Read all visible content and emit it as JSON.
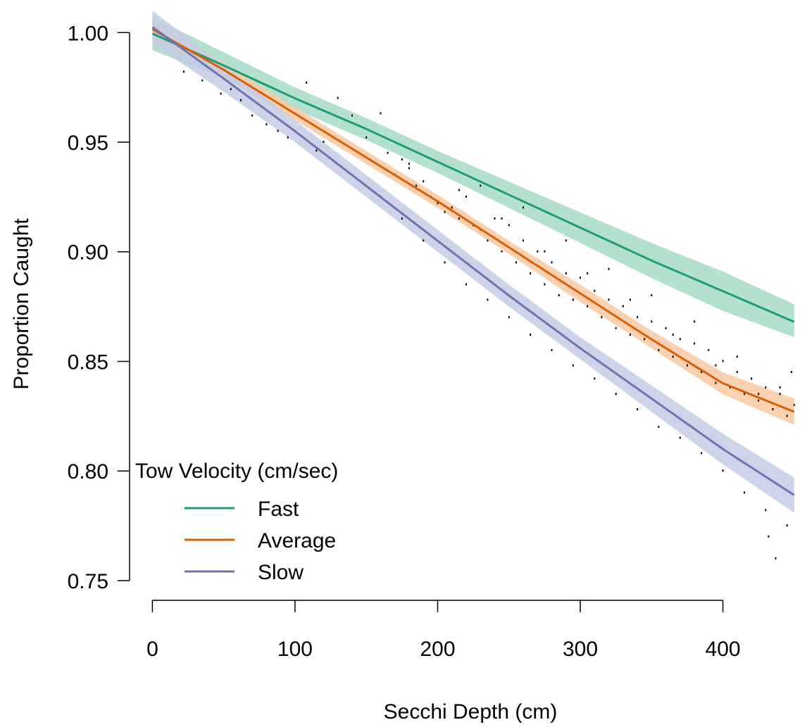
{
  "chart_data": {
    "type": "line",
    "title": "",
    "xlabel": "Secchi Depth (cm)",
    "ylabel": "Proportion Caught",
    "xlim": [
      -16,
      456
    ],
    "ylim": [
      0.741,
      1.011
    ],
    "x_ticks": [
      0,
      100,
      200,
      300,
      400
    ],
    "x_tick_labels": [
      "0",
      "100",
      "200",
      "300",
      "400"
    ],
    "y_ticks": [
      0.75,
      0.8,
      0.85,
      0.9,
      0.95,
      1.0
    ],
    "y_tick_labels": [
      "0.75",
      "0.80",
      "0.85",
      "0.90",
      "0.95",
      "1.00"
    ],
    "grid": false,
    "legend": {
      "title": "Tow Velocity (cm/sec)",
      "placement": "bottom-left"
    },
    "series": [
      {
        "name": "Fast",
        "color": "#1b9e77",
        "band_color": "#a6dcc4",
        "x": [
          0,
          50,
          100,
          150,
          200,
          250,
          300,
          350,
          400,
          450
        ],
        "y": [
          0.9995,
          0.985,
          0.97,
          0.956,
          0.941,
          0.926,
          0.911,
          0.896,
          0.882,
          0.868
        ],
        "lower": [
          0.992,
          0.979,
          0.965,
          0.951,
          0.936,
          0.92,
          0.904,
          0.888,
          0.873,
          0.861
        ],
        "upper": [
          1.007,
          0.991,
          0.975,
          0.961,
          0.946,
          0.932,
          0.918,
          0.904,
          0.891,
          0.876
        ]
      },
      {
        "name": "Average",
        "color": "#d95f02",
        "band_color": "#f8c9a2",
        "x": [
          0,
          50,
          100,
          150,
          200,
          250,
          300,
          350,
          400,
          450
        ],
        "y": [
          1.0015,
          0.983,
          0.963,
          0.943,
          0.923,
          0.902,
          0.881,
          0.86,
          0.84,
          0.827
        ],
        "lower": [
          0.998,
          0.98,
          0.96,
          0.94,
          0.92,
          0.899,
          0.877,
          0.856,
          0.835,
          0.821
        ],
        "upper": [
          1.005,
          0.986,
          0.966,
          0.946,
          0.926,
          0.905,
          0.885,
          0.864,
          0.845,
          0.833
        ]
      },
      {
        "name": "Slow",
        "color": "#7570b3",
        "band_color": "#c2cce5",
        "x": [
          0,
          50,
          100,
          150,
          200,
          250,
          300,
          350,
          400,
          450
        ],
        "y": [
          1.0025,
          0.979,
          0.955,
          0.93,
          0.905,
          0.88,
          0.856,
          0.833,
          0.81,
          0.789
        ],
        "lower": [
          0.995,
          0.973,
          0.95,
          0.925,
          0.9,
          0.875,
          0.851,
          0.827,
          0.803,
          0.781
        ],
        "upper": [
          1.01,
          0.985,
          0.96,
          0.935,
          0.91,
          0.885,
          0.861,
          0.839,
          0.817,
          0.797
        ]
      }
    ],
    "scatter_points": {
      "color": "#000000",
      "x": [
        22,
        35,
        48,
        55,
        62,
        70,
        80,
        88,
        95,
        100,
        108,
        115,
        120,
        130,
        140,
        150,
        160,
        165,
        170,
        175,
        180,
        185,
        190,
        195,
        200,
        205,
        210,
        215,
        220,
        225,
        230,
        235,
        240,
        245,
        250,
        255,
        260,
        265,
        270,
        275,
        280,
        285,
        290,
        295,
        300,
        305,
        310,
        315,
        320,
        325,
        330,
        335,
        340,
        345,
        350,
        355,
        360,
        365,
        370,
        375,
        380,
        385,
        390,
        395,
        400,
        405,
        410,
        415,
        420,
        425,
        430,
        435,
        440,
        445,
        450,
        160,
        175,
        190,
        205,
        220,
        235,
        250,
        265,
        280,
        295,
        310,
        325,
        340,
        355,
        370,
        385,
        400,
        415,
        430,
        445,
        230,
        260,
        290,
        320,
        350,
        380,
        410,
        440,
        180,
        215,
        245,
        275,
        305,
        335,
        365,
        395,
        425,
        432,
        437,
        448
      ],
      "y": [
        0.982,
        0.978,
        0.972,
        0.974,
        0.969,
        0.962,
        0.958,
        0.955,
        0.952,
        0.955,
        0.977,
        0.946,
        0.95,
        0.97,
        0.962,
        0.952,
        0.963,
        0.945,
        0.935,
        0.942,
        0.938,
        0.93,
        0.932,
        0.925,
        0.922,
        0.918,
        0.92,
        0.915,
        0.925,
        0.912,
        0.91,
        0.905,
        0.915,
        0.9,
        0.912,
        0.895,
        0.905,
        0.89,
        0.9,
        0.885,
        0.895,
        0.88,
        0.89,
        0.878,
        0.888,
        0.875,
        0.882,
        0.87,
        0.878,
        0.865,
        0.875,
        0.862,
        0.87,
        0.86,
        0.868,
        0.855,
        0.865,
        0.852,
        0.86,
        0.848,
        0.858,
        0.845,
        0.855,
        0.84,
        0.85,
        0.838,
        0.845,
        0.835,
        0.842,
        0.832,
        0.838,
        0.828,
        0.835,
        0.825,
        0.83,
        0.925,
        0.915,
        0.905,
        0.895,
        0.885,
        0.878,
        0.87,
        0.862,
        0.855,
        0.848,
        0.842,
        0.835,
        0.828,
        0.82,
        0.815,
        0.808,
        0.8,
        0.79,
        0.782,
        0.775,
        0.93,
        0.92,
        0.905,
        0.892,
        0.88,
        0.868,
        0.852,
        0.838,
        0.94,
        0.928,
        0.915,
        0.9,
        0.89,
        0.878,
        0.862,
        0.848,
        0.835,
        0.77,
        0.76,
        0.845
      ]
    }
  }
}
